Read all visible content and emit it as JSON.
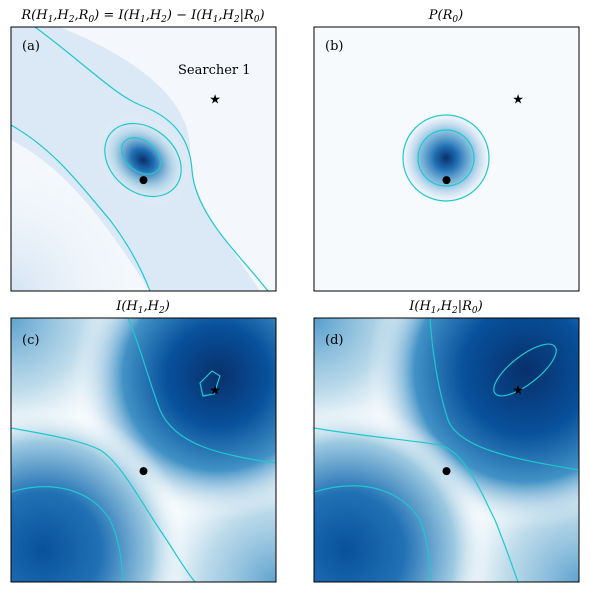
{
  "chart_data": [
    {
      "type": "heatmap",
      "title": "R(H1,H2,R0) = I(H1,H2) − I(H1,H2|R0)",
      "panel_label": "(a)",
      "annotation": "Searcher 1",
      "markers": {
        "dot": [
          0.5,
          0.58
        ],
        "star": [
          0.77,
          0.27
        ]
      },
      "colormap": "Blues"
    },
    {
      "type": "heatmap",
      "title": "P(R0)",
      "panel_label": "(b)",
      "markers": {
        "dot": [
          0.5,
          0.58
        ],
        "star": [
          0.77,
          0.27
        ]
      },
      "colormap": "Blues"
    },
    {
      "type": "heatmap",
      "title": "I(H1,H2)",
      "panel_label": "(c)",
      "markers": {
        "dot": [
          0.5,
          0.58
        ],
        "star": [
          0.77,
          0.27
        ]
      },
      "colormap": "Blues"
    },
    {
      "type": "heatmap",
      "title": "I(H1,H2|R0)",
      "panel_label": "(d)",
      "markers": {
        "dot": [
          0.5,
          0.58
        ],
        "star": [
          0.77,
          0.27
        ]
      },
      "colormap": "Blues"
    }
  ],
  "colors": {
    "heat_dark": "#08306b",
    "heat_mid": "#2171b5",
    "heat_light": "#c6dbef",
    "contour": "#1fc8cf",
    "marker": "#000000",
    "frame": "#000000"
  }
}
